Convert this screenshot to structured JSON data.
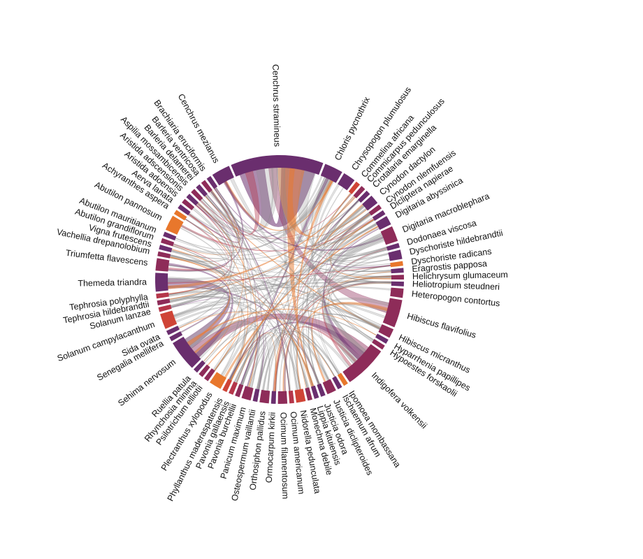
{
  "chart_data": {
    "type": "chord",
    "title": "",
    "colors": {
      "plum": "#6a2e6e",
      "wine": "#8e2c59",
      "crimson": "#b5364a",
      "red": "#cf4436",
      "orange": "#e8772c",
      "link": "#8a8a8a"
    },
    "nodes": [
      {
        "name": "Cenchrus stramineus",
        "value": 30,
        "color": "#6a2e6e"
      },
      {
        "name": "Chloris pycnothrix",
        "value": 6,
        "color": "#6a2e6e"
      },
      {
        "name": "Chrysopogon plumulosus",
        "value": 4,
        "color": "#6a2e6e"
      },
      {
        "name": "Commelina africana",
        "value": 1.5,
        "color": "#cf4436"
      },
      {
        "name": "Commicarpus pedunculosus",
        "value": 1.5,
        "color": "#8e2c59"
      },
      {
        "name": "Crotalaria emarginella",
        "value": 1.5,
        "color": "#6a2e6e"
      },
      {
        "name": "Cynodon dactylon",
        "value": 3,
        "color": "#6a2e6e"
      },
      {
        "name": "Cynodon nlemfuensis",
        "value": 1.5,
        "color": "#8e2c59"
      },
      {
        "name": "Dicliptera napierae",
        "value": 1.5,
        "color": "#6a2e6e"
      },
      {
        "name": "Digitaria abyssinica",
        "value": 3,
        "color": "#6a2e6e"
      },
      {
        "name": "Digitaria macroblephara",
        "value": 5,
        "color": "#8e2c59"
      },
      {
        "name": "Dodonaea viscosa",
        "value": 1.5,
        "color": "#6a2e6e"
      },
      {
        "name": "Dyschoriste hildebrandtii",
        "value": 3,
        "color": "#6a2e6e"
      },
      {
        "name": "Dyschoriste radicans",
        "value": 1.5,
        "color": "#e8772c"
      },
      {
        "name": "Eragrostis papposa",
        "value": 1.5,
        "color": "#6a2e6e"
      },
      {
        "name": "Helichrysum glumaceum",
        "value": 1.5,
        "color": "#8e2c59"
      },
      {
        "name": "Heliotropium steudneri",
        "value": 1.5,
        "color": "#6a2e6e"
      },
      {
        "name": "Heteropogon contortus",
        "value": 3,
        "color": "#8e2c59"
      },
      {
        "name": "Hibiscus flavifolius",
        "value": 9,
        "color": "#8e2c59"
      },
      {
        "name": "Hibiscus micranthus",
        "value": 3,
        "color": "#8e2c59"
      },
      {
        "name": "Hyparrhenia papillipes",
        "value": 1.5,
        "color": "#6a2e6e"
      },
      {
        "name": "Hypoestes forskaolii",
        "value": 1.5,
        "color": "#8e2c59"
      },
      {
        "name": "Indigofera volkensii",
        "value": 14,
        "color": "#8e2c59"
      },
      {
        "name": "Ipomoea mombassana",
        "value": 1.5,
        "color": "#e8772c"
      },
      {
        "name": "Ischaemum afrum",
        "value": 1.5,
        "color": "#6a2e6e"
      },
      {
        "name": "Justicia diclipteroides",
        "value": 3,
        "color": "#8e2c59"
      },
      {
        "name": "Justicia odora",
        "value": 1.5,
        "color": "#6a2e6e"
      },
      {
        "name": "Lippia kituiensis",
        "value": 1.5,
        "color": "#6a2e6e"
      },
      {
        "name": "Monechma debile",
        "value": 1.5,
        "color": "#8e2c59"
      },
      {
        "name": "Nidorella pedunculata",
        "value": 3,
        "color": "#cf4436"
      },
      {
        "name": "Ocimum americanum",
        "value": 1.5,
        "color": "#b5364a"
      },
      {
        "name": "Ocimum filamentosum",
        "value": 3,
        "color": "#8e2c59"
      },
      {
        "name": "Ormocarpum kirkii",
        "value": 1.5,
        "color": "#6a2e6e"
      },
      {
        "name": "Orthosiphon pallidus",
        "value": 3,
        "color": "#8e2c59"
      },
      {
        "name": "Osteospermum vaillantii",
        "value": 1.5,
        "color": "#6a2e6e"
      },
      {
        "name": "Panicum maximum",
        "value": 3,
        "color": "#8e2c59"
      },
      {
        "name": "Pavonia burchellii",
        "value": 1.5,
        "color": "#8e2c59"
      },
      {
        "name": "Pavonia gallaensis",
        "value": 1.5,
        "color": "#b5364a"
      },
      {
        "name": "Phyllanthus maderaspatensis",
        "value": 1.5,
        "color": "#cf4436"
      },
      {
        "name": "Plectranthus xylopodus",
        "value": 4,
        "color": "#e8772c"
      },
      {
        "name": "Psilotrichum elliotii",
        "value": 1.5,
        "color": "#8e2c59"
      },
      {
        "name": "Rhynchosia minima",
        "value": 1.5,
        "color": "#8e2c59"
      },
      {
        "name": "Ruellia patula",
        "value": 1.5,
        "color": "#6a2e6e"
      },
      {
        "name": "Sehima nervosum",
        "value": 10,
        "color": "#6a2e6e"
      },
      {
        "name": "Senegalia mellifera",
        "value": 1.5,
        "color": "#6a2e6e"
      },
      {
        "name": "Sida ovata",
        "value": 1.5,
        "color": "#6a2e6e"
      },
      {
        "name": "Solanum campylacanthum",
        "value": 5,
        "color": "#cf4436"
      },
      {
        "name": "Solanum lanzae",
        "value": 1.5,
        "color": "#b5364a"
      },
      {
        "name": "Tephrosia hildebrandtii",
        "value": 1.5,
        "color": "#8e2c59"
      },
      {
        "name": "Tephrosia polyphylla",
        "value": 1.5,
        "color": "#b5364a"
      },
      {
        "name": "Themeda triandra",
        "value": 6,
        "color": "#6a2e6e"
      },
      {
        "name": "Triumfetta flavescens",
        "value": 4,
        "color": "#8e2c59"
      },
      {
        "name": "Vachellia drepanolobium",
        "value": 1.5,
        "color": "#8e2c59"
      },
      {
        "name": "Vigna frutescens",
        "value": 1.5,
        "color": "#6a2e6e"
      },
      {
        "name": "Abutilon grandiflorum",
        "value": 1.5,
        "color": "#8e2c59"
      },
      {
        "name": "Abutilon mauritianum",
        "value": 1.5,
        "color": "#6a2e6e"
      },
      {
        "name": "Abutilon pannosum",
        "value": 5,
        "color": "#e8772c"
      },
      {
        "name": "Achyranthes aspera",
        "value": 1.5,
        "color": "#e8772c"
      },
      {
        "name": "Aerva lanata",
        "value": 1.5,
        "color": "#6a2e6e"
      },
      {
        "name": "Aristida adoensis",
        "value": 1.5,
        "color": "#8e2c59"
      },
      {
        "name": "Aristida adscensionis",
        "value": 1.5,
        "color": "#6a2e6e"
      },
      {
        "name": "Aspilia mossambicensis",
        "value": 1.5,
        "color": "#8e2c59"
      },
      {
        "name": "Barleria delamerei",
        "value": 1.5,
        "color": "#6a2e6e"
      },
      {
        "name": "Barleria ventricosa",
        "value": 1.5,
        "color": "#8e2c59"
      },
      {
        "name": "Brachiaria eruciformis",
        "value": 1.5,
        "color": "#6a2e6e"
      },
      {
        "name": "Cenchrus mezianus",
        "value": 6,
        "color": "#6a2e6e"
      }
    ]
  }
}
